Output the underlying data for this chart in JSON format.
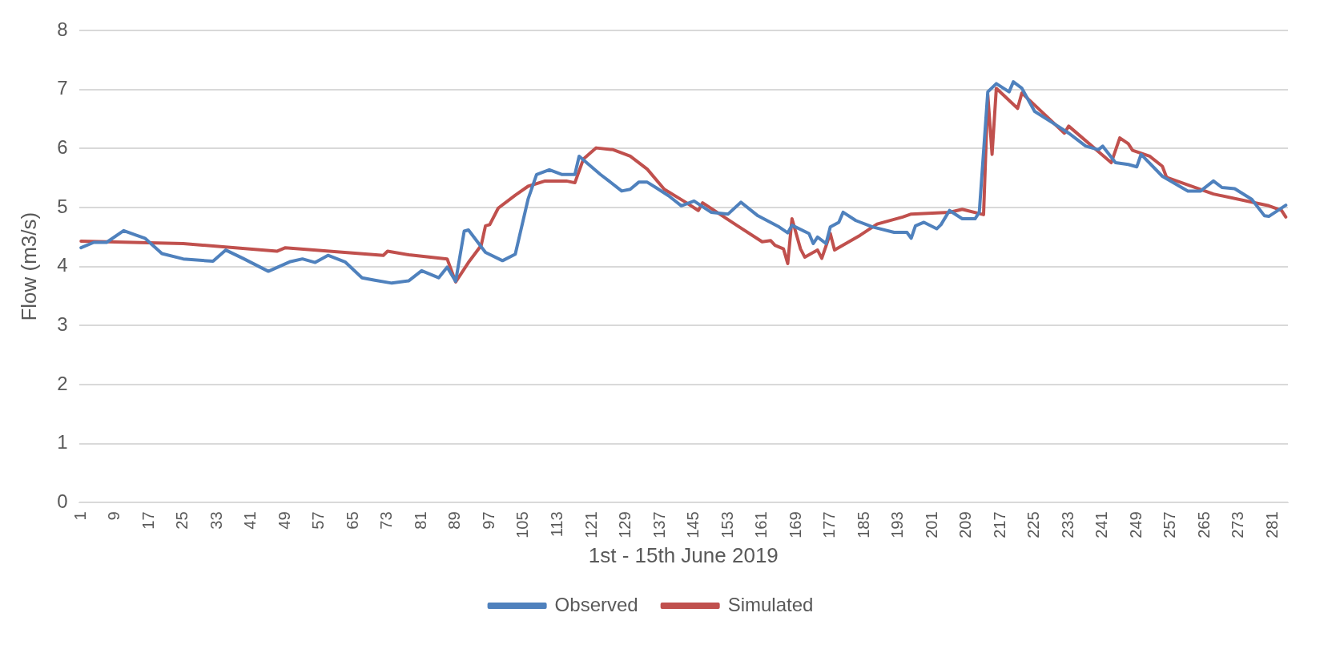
{
  "chart_data": {
    "type": "line",
    "xlabel": "1st - 15th June 2019",
    "ylabel": "Flow (m3/s)",
    "xlim": [
      0.5,
      284.5
    ],
    "xticks": [
      1,
      9,
      17,
      25,
      33,
      41,
      49,
      57,
      65,
      73,
      81,
      89,
      97,
      105,
      113,
      121,
      129,
      137,
      145,
      153,
      161,
      169,
      177,
      185,
      193,
      201,
      209,
      217,
      225,
      233,
      241,
      249,
      257,
      265,
      273,
      281
    ],
    "ylim": [
      0,
      8
    ],
    "yticks": [
      0,
      1,
      2,
      3,
      4,
      5,
      6,
      7,
      8
    ],
    "grid": "y",
    "legend": "bottom",
    "marker": "none",
    "line_style": "solid",
    "series": [
      {
        "name": "Observed",
        "color": "#4f81bd",
        "x": [
          1,
          4,
          7,
          11,
          14,
          16,
          20,
          25,
          32,
          35,
          39,
          45,
          50,
          53,
          56,
          59,
          63,
          67,
          70,
          74,
          78,
          81,
          85,
          87,
          89,
          91,
          92,
          96,
          100,
          103,
          106,
          108,
          111,
          114,
          117,
          118,
          123,
          125,
          128,
          130,
          132,
          134,
          136,
          139,
          142,
          145,
          149,
          153,
          156,
          160,
          165,
          167,
          168,
          172,
          173,
          174,
          176,
          177,
          179,
          180,
          183,
          187,
          192,
          195,
          196,
          197,
          199,
          202,
          203,
          205,
          208,
          211,
          212,
          214,
          216,
          219,
          220,
          222,
          225,
          230,
          233,
          237,
          240,
          241,
          244,
          247,
          249,
          250,
          255,
          261,
          264,
          267,
          269,
          272,
          276,
          279,
          280,
          284
        ],
        "values": [
          4.32,
          4.41,
          4.41,
          4.61,
          4.53,
          4.48,
          4.22,
          4.13,
          4.09,
          4.28,
          4.14,
          3.92,
          4.08,
          4.13,
          4.07,
          4.19,
          4.08,
          3.81,
          3.77,
          3.72,
          3.76,
          3.93,
          3.81,
          3.99,
          3.75,
          4.6,
          4.62,
          4.24,
          4.1,
          4.21,
          5.14,
          5.56,
          5.64,
          5.56,
          5.56,
          5.87,
          5.56,
          5.45,
          5.28,
          5.31,
          5.43,
          5.43,
          5.34,
          5.2,
          5.03,
          5.11,
          4.92,
          4.89,
          5.09,
          4.86,
          4.67,
          4.57,
          4.7,
          4.56,
          4.39,
          4.5,
          4.39,
          4.67,
          4.75,
          4.92,
          4.78,
          4.67,
          4.58,
          4.58,
          4.48,
          4.69,
          4.75,
          4.64,
          4.71,
          4.95,
          4.81,
          4.81,
          4.92,
          6.96,
          7.1,
          6.96,
          7.13,
          7.02,
          6.63,
          6.4,
          6.26,
          6.04,
          5.98,
          6.04,
          5.76,
          5.73,
          5.69,
          5.9,
          5.53,
          5.28,
          5.28,
          5.45,
          5.34,
          5.32,
          5.14,
          4.86,
          4.85,
          5.04
        ]
      },
      {
        "name": "Simulated",
        "color": "#c0504d",
        "x": [
          1,
          25,
          47,
          49,
          72,
          73,
          78,
          87,
          89,
          92,
          95,
          96,
          97,
          99,
          103,
          106,
          110,
          115,
          117,
          119,
          122,
          126,
          130,
          134,
          138,
          143,
          146,
          147,
          155,
          161,
          163,
          164,
          166,
          167,
          168,
          170,
          171,
          174,
          175,
          177,
          178,
          184,
          188,
          194,
          196,
          205,
          208,
          213,
          214,
          215,
          216,
          221,
          222,
          232,
          233,
          243,
          245,
          247,
          248,
          252,
          255,
          256,
          267,
          280,
          283,
          284
        ],
        "values": [
          4.43,
          4.39,
          4.26,
          4.32,
          4.19,
          4.26,
          4.2,
          4.13,
          3.74,
          4.07,
          4.36,
          4.69,
          4.71,
          4.99,
          5.21,
          5.36,
          5.45,
          5.45,
          5.42,
          5.82,
          6.01,
          5.98,
          5.87,
          5.65,
          5.31,
          5.09,
          4.95,
          5.08,
          4.7,
          4.42,
          4.44,
          4.36,
          4.3,
          4.05,
          4.81,
          4.3,
          4.16,
          4.28,
          4.14,
          4.56,
          4.28,
          4.53,
          4.72,
          4.84,
          4.89,
          4.92,
          4.97,
          4.88,
          6.91,
          5.9,
          7.02,
          6.68,
          6.94,
          6.26,
          6.38,
          5.76,
          6.18,
          6.08,
          5.97,
          5.87,
          5.7,
          5.51,
          5.23,
          5.03,
          4.95,
          4.84
        ]
      }
    ]
  }
}
